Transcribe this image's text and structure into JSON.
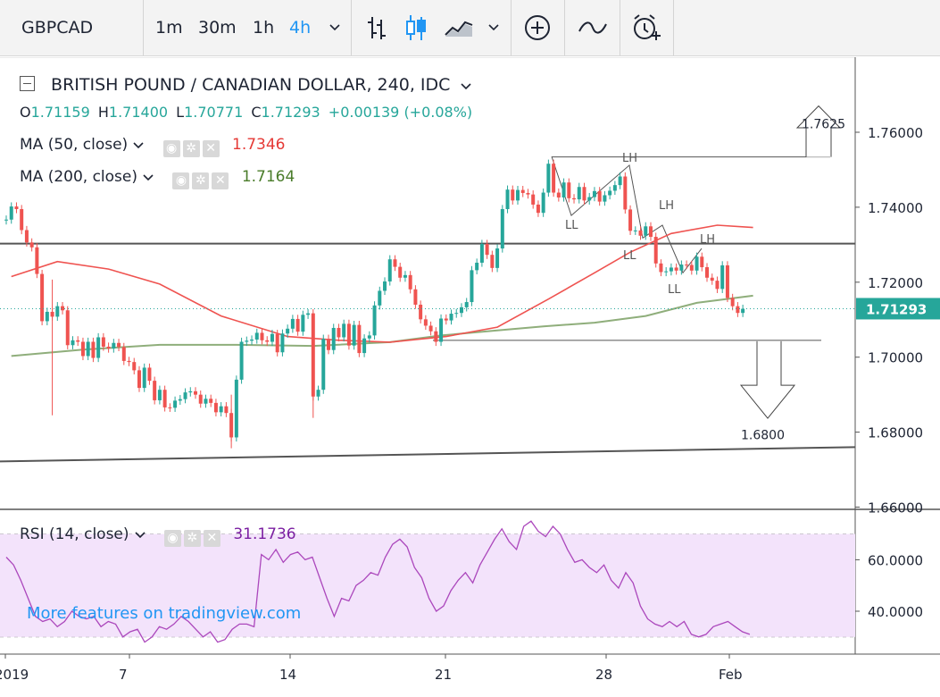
{
  "toolbar": {
    "symbol": "GBPCAD",
    "intervals": [
      "1m",
      "30m",
      "1h",
      "4h"
    ],
    "active_interval": "4h",
    "colors": {
      "active": "#2196f3",
      "text": "#1e2433"
    }
  },
  "legend": {
    "title": "BRITISH POUND / CANADIAN DOLLAR, 240, IDC",
    "ohlc": {
      "o": "1.71159",
      "h": "1.71400",
      "l": "1.70771",
      "c": "1.71293",
      "change": "+0.00139 (+0.08%)"
    },
    "ma50": {
      "label": "MA (50, close)",
      "value": "1.7346",
      "color": "#e53935"
    },
    "ma200": {
      "label": "MA (200, close)",
      "value": "1.7164",
      "color": "#4a7c2a"
    },
    "rsi": {
      "label": "RSI (14, close)",
      "value": "31.1736",
      "color": "#7b1fa2"
    }
  },
  "watermark": "More features on tradingview.com",
  "colors": {
    "up": "#26a69a",
    "down": "#ef5350",
    "ma50": "#ef5350",
    "ma200": "#8fae7b",
    "rsi": "#ab47bc",
    "rsi_band": "#f3e3fb",
    "price_label": "#26a69a"
  },
  "chart_data": [
    {
      "type": "candlestick",
      "title": "BRITISH POUND / CANADIAN DOLLAR, 240, IDC",
      "ylim": [
        1.66,
        1.7815
      ],
      "yticks": [
        "1.76000",
        "1.74000",
        "1.72000",
        "1.70000",
        "1.68000",
        "1.66000"
      ],
      "xticks": [
        "2019",
        "7",
        "14",
        "21",
        "28",
        "Feb"
      ],
      "last_price": "1.71293",
      "seed_close": 1.7365,
      "closes": [
        1.7367,
        1.7402,
        1.7395,
        1.7339,
        1.7306,
        1.7293,
        1.7222,
        1.7096,
        1.7121,
        1.7108,
        1.7136,
        1.7125,
        1.7032,
        1.7045,
        1.7041,
        1.7003,
        1.7041,
        1.6998,
        1.7053,
        1.7028,
        1.7023,
        1.7038,
        1.7027,
        1.699,
        1.6987,
        1.6965,
        1.6918,
        1.6972,
        1.6937,
        1.6885,
        1.6913,
        1.6866,
        1.6865,
        1.6884,
        1.6888,
        1.6906,
        1.6909,
        1.69,
        1.6876,
        1.6889,
        1.6878,
        1.6853,
        1.6869,
        1.6851,
        1.6786,
        1.694,
        1.7041,
        1.7044,
        1.7047,
        1.7065,
        1.7045,
        1.7041,
        1.7062,
        1.7013,
        1.7063,
        1.7076,
        1.7102,
        1.7068,
        1.7113,
        1.7117,
        1.6895,
        1.6913,
        1.7049,
        1.7019,
        1.7078,
        1.7053,
        1.7089,
        1.7031,
        1.7086,
        1.7011,
        1.705,
        1.7058,
        1.7138,
        1.7177,
        1.7202,
        1.7261,
        1.7241,
        1.7212,
        1.7219,
        1.7181,
        1.714,
        1.7101,
        1.7084,
        1.7069,
        1.7041,
        1.7103,
        1.7098,
        1.7116,
        1.7118,
        1.7133,
        1.7147,
        1.7232,
        1.7252,
        1.7302,
        1.7273,
        1.7238,
        1.729,
        1.7395,
        1.7447,
        1.7418,
        1.7446,
        1.7438,
        1.7434,
        1.7407,
        1.7385,
        1.7439,
        1.7516,
        1.7439,
        1.7426,
        1.7466,
        1.7424,
        1.7421,
        1.7454,
        1.7418,
        1.7427,
        1.7443,
        1.7415,
        1.7432,
        1.7444,
        1.7459,
        1.7482,
        1.7394,
        1.7337,
        1.7338,
        1.7324,
        1.7349,
        1.7321,
        1.725,
        1.7227,
        1.7229,
        1.7239,
        1.7231,
        1.7247,
        1.7246,
        1.7231,
        1.7268,
        1.724,
        1.7212,
        1.7204,
        1.7182,
        1.7245,
        1.7158,
        1.7136,
        1.7118,
        1.7129
      ],
      "ma50": {
        "name": "MA (50, close)",
        "points": [
          [
            1,
            1.7215
          ],
          [
            10,
            1.7255
          ],
          [
            20,
            1.7235
          ],
          [
            30,
            1.7195
          ],
          [
            42,
            1.711
          ],
          [
            55,
            1.7055
          ],
          [
            65,
            1.7045
          ],
          [
            75,
            1.704
          ],
          [
            86,
            1.7055
          ],
          [
            96,
            1.708
          ],
          [
            106,
            1.7155
          ],
          [
            115,
            1.7225
          ],
          [
            122,
            1.728
          ],
          [
            130,
            1.733
          ],
          [
            139,
            1.7352
          ],
          [
            146,
            1.7346
          ]
        ]
      },
      "ma200": {
        "name": "MA (200, close)",
        "points": [
          [
            1,
            1.7003
          ],
          [
            15,
            1.702
          ],
          [
            30,
            1.7033
          ],
          [
            45,
            1.7033
          ],
          [
            60,
            1.703
          ],
          [
            75,
            1.704
          ],
          [
            85,
            1.7058
          ],
          [
            95,
            1.707
          ],
          [
            105,
            1.7082
          ],
          [
            115,
            1.7092
          ],
          [
            125,
            1.711
          ],
          [
            135,
            1.7145
          ],
          [
            146,
            1.7164
          ]
        ]
      },
      "annotations": {
        "upper_target": "1.7625",
        "lower_target": "1.6800",
        "swing_labels": [
          "LH",
          "LL",
          "LH",
          "LL",
          "LH",
          "LL"
        ],
        "resistance_line": [
          1.7303,
          1.7303
        ],
        "lower_trendline": [
          1.6722,
          1.676
        ]
      }
    },
    {
      "type": "line",
      "title": "RSI (14, close)",
      "ylim": [
        24,
        76
      ],
      "yticks": [
        "60.0000",
        "40.0000"
      ],
      "band": [
        30,
        70
      ],
      "values": [
        61,
        58,
        52,
        45,
        38,
        36,
        37,
        34,
        36,
        40,
        38,
        37,
        38,
        34,
        36,
        35,
        30,
        32,
        33,
        28,
        30,
        34,
        33,
        35,
        38,
        36,
        33,
        30,
        32,
        28,
        29,
        33,
        35,
        35,
        34,
        62,
        60,
        64,
        59,
        62,
        63,
        60,
        61,
        53,
        45,
        38,
        45,
        44,
        50,
        52,
        55,
        54,
        61,
        66,
        68,
        65,
        57,
        53,
        45,
        40,
        42,
        48,
        52,
        55,
        51,
        58,
        63,
        68,
        72,
        67,
        64,
        73,
        75,
        71,
        69,
        73,
        70,
        64,
        59,
        60,
        57,
        55,
        58,
        52,
        49,
        55,
        51,
        42,
        37,
        35,
        34,
        36,
        34,
        36,
        31,
        30,
        31,
        34,
        35,
        36,
        34,
        32,
        31
      ]
    }
  ]
}
